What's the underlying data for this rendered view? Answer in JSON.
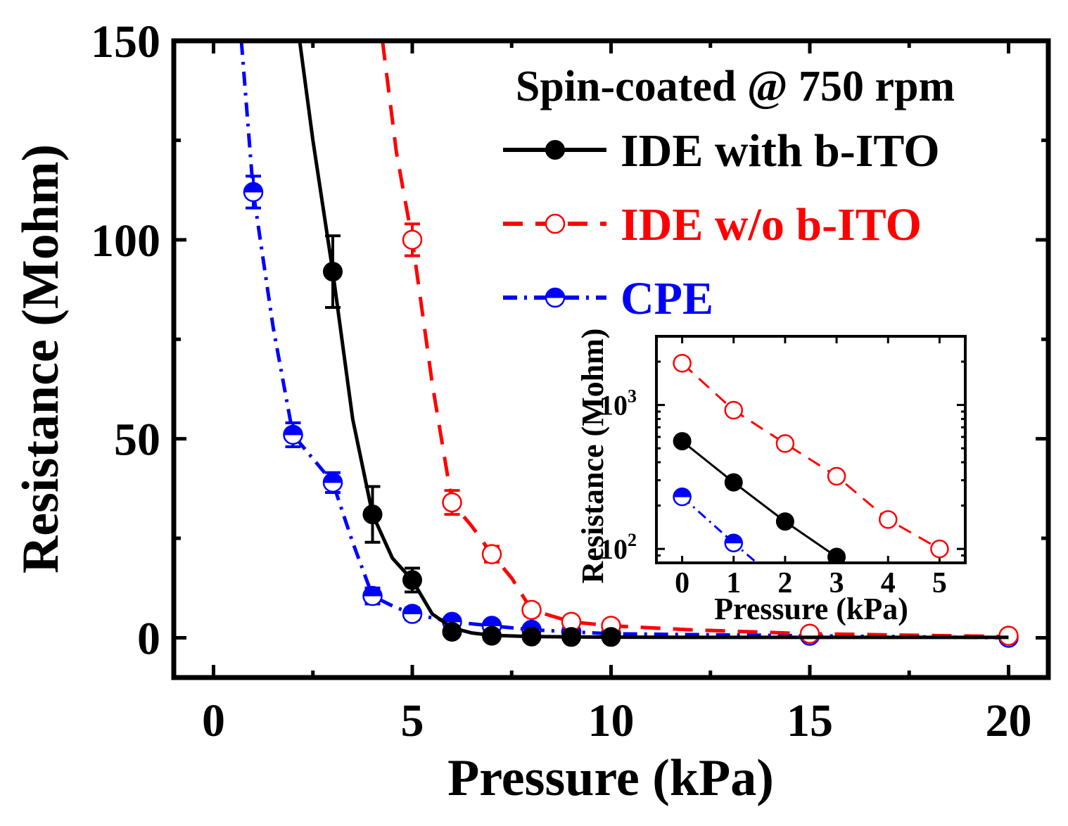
{
  "chart_data": [
    {
      "type": "scatter",
      "title": "",
      "xlabel": "Pressure (kPa)",
      "ylabel": "Resistance (Mohm)",
      "xlim": [
        -1,
        21
      ],
      "ylim": [
        -10,
        150
      ],
      "xticks": [
        0,
        5,
        10,
        15,
        20
      ],
      "yticks": [
        0,
        50,
        100,
        150
      ],
      "xtick_labels": [
        "0",
        "5",
        "10",
        "15",
        "20"
      ],
      "ytick_labels": [
        "0",
        "50",
        "100",
        "150"
      ],
      "legend": {
        "title": "Spin-coated @ 750 rpm",
        "placement": "top-right"
      },
      "series": [
        {
          "name": "IDE with b-ITO",
          "color": "#000000",
          "marker": "filled-circle",
          "line": "solid",
          "x": [
            3,
            4,
            5,
            6,
            7,
            8,
            9,
            10
          ],
          "y": [
            92,
            31,
            14.5,
            1.5,
            0.5,
            0.3,
            0.2,
            0.2
          ],
          "err": [
            9,
            7,
            3,
            1,
            0.8,
            0.5,
            0.5,
            0.5
          ],
          "fit_x": [
            2.1,
            2.5,
            3,
            3.5,
            4,
            4.5,
            5,
            5.5,
            6,
            6.5,
            7,
            8,
            9,
            10,
            12,
            15,
            20
          ],
          "fit_y": [
            155,
            125,
            92,
            55,
            31,
            20,
            14.5,
            6,
            2.5,
            1.2,
            0.6,
            0.3,
            0.2,
            0.15,
            0.1,
            0.1,
            0.1
          ]
        },
        {
          "name": "IDE w/o b-ITO",
          "color": "#ff0000",
          "marker": "open-circle",
          "line": "dashed",
          "x": [
            5,
            6,
            7,
            8,
            9,
            10,
            15,
            20
          ],
          "y": [
            100,
            34,
            21,
            7,
            4,
            3,
            1,
            0.5
          ],
          "err": [
            4,
            3,
            2,
            1.5,
            1,
            1,
            0.8,
            0.5
          ],
          "fit_x": [
            4.25,
            4.6,
            5,
            5.5,
            6,
            6.5,
            7,
            7.5,
            8,
            9,
            10,
            12,
            15,
            20
          ],
          "fit_y": [
            150,
            122,
            100,
            64,
            34,
            28,
            21,
            15,
            7,
            4,
            3,
            2,
            1,
            0.3
          ]
        },
        {
          "name": "CPE",
          "color": "#0000ff",
          "marker": "half-filled-circle",
          "line": "dash-dot",
          "x": [
            1,
            2,
            3,
            4,
            5,
            6,
            7,
            8,
            9,
            10,
            15,
            20
          ],
          "y": [
            112,
            51,
            39,
            10.5,
            6,
            4,
            3,
            2,
            1.5,
            1,
            0.5,
            0
          ],
          "err": [
            4,
            3,
            2.5,
            2,
            1.5,
            1,
            1,
            1,
            1,
            0.8,
            0.5,
            0.5
          ],
          "fit_x": [
            0.7,
            1,
            1.5,
            2,
            2.5,
            3,
            3.5,
            4,
            4.5,
            5,
            6,
            7,
            8,
            9,
            10,
            15,
            20
          ],
          "fit_y": [
            150,
            112,
            78,
            51,
            45,
            39,
            24,
            10.5,
            8,
            6,
            4,
            3,
            2,
            1.5,
            1,
            0.5,
            0
          ]
        }
      ]
    },
    {
      "type": "scatter",
      "role": "inset",
      "yscale": "log",
      "xlabel": "Pressure (kPa)",
      "ylabel": "Resistance (Mohm)",
      "xlim": [
        -0.5,
        5.5
      ],
      "ylim": [
        80,
        3000
      ],
      "xticks": [
        0,
        1,
        2,
        3,
        4,
        5
      ],
      "xtick_labels": [
        "0",
        "1",
        "2",
        "3",
        "4",
        "5"
      ],
      "yticks": [
        100,
        1000
      ],
      "ytick_labels": [
        {
          "base": "10",
          "exp": "2"
        },
        {
          "base": "10",
          "exp": "3"
        }
      ],
      "series": [
        {
          "name": "IDE w/o b-ITO",
          "color": "#ff0000",
          "marker": "open-circle",
          "line": "dashed",
          "x": [
            0,
            1,
            2,
            3,
            4,
            5
          ],
          "y": [
            1950,
            920,
            540,
            320,
            160,
            100
          ]
        },
        {
          "name": "IDE with b-ITO",
          "color": "#000000",
          "marker": "filled-circle",
          "line": "solid",
          "x": [
            0,
            1,
            2,
            3
          ],
          "y": [
            560,
            290,
            155,
            88
          ]
        },
        {
          "name": "CPE",
          "color": "#0000ff",
          "marker": "half-filled-circle",
          "line": "dash-dot",
          "x": [
            0,
            1
          ],
          "y": [
            230,
            110
          ],
          "line_extend_to": [
            1.45,
            80
          ]
        }
      ]
    }
  ]
}
